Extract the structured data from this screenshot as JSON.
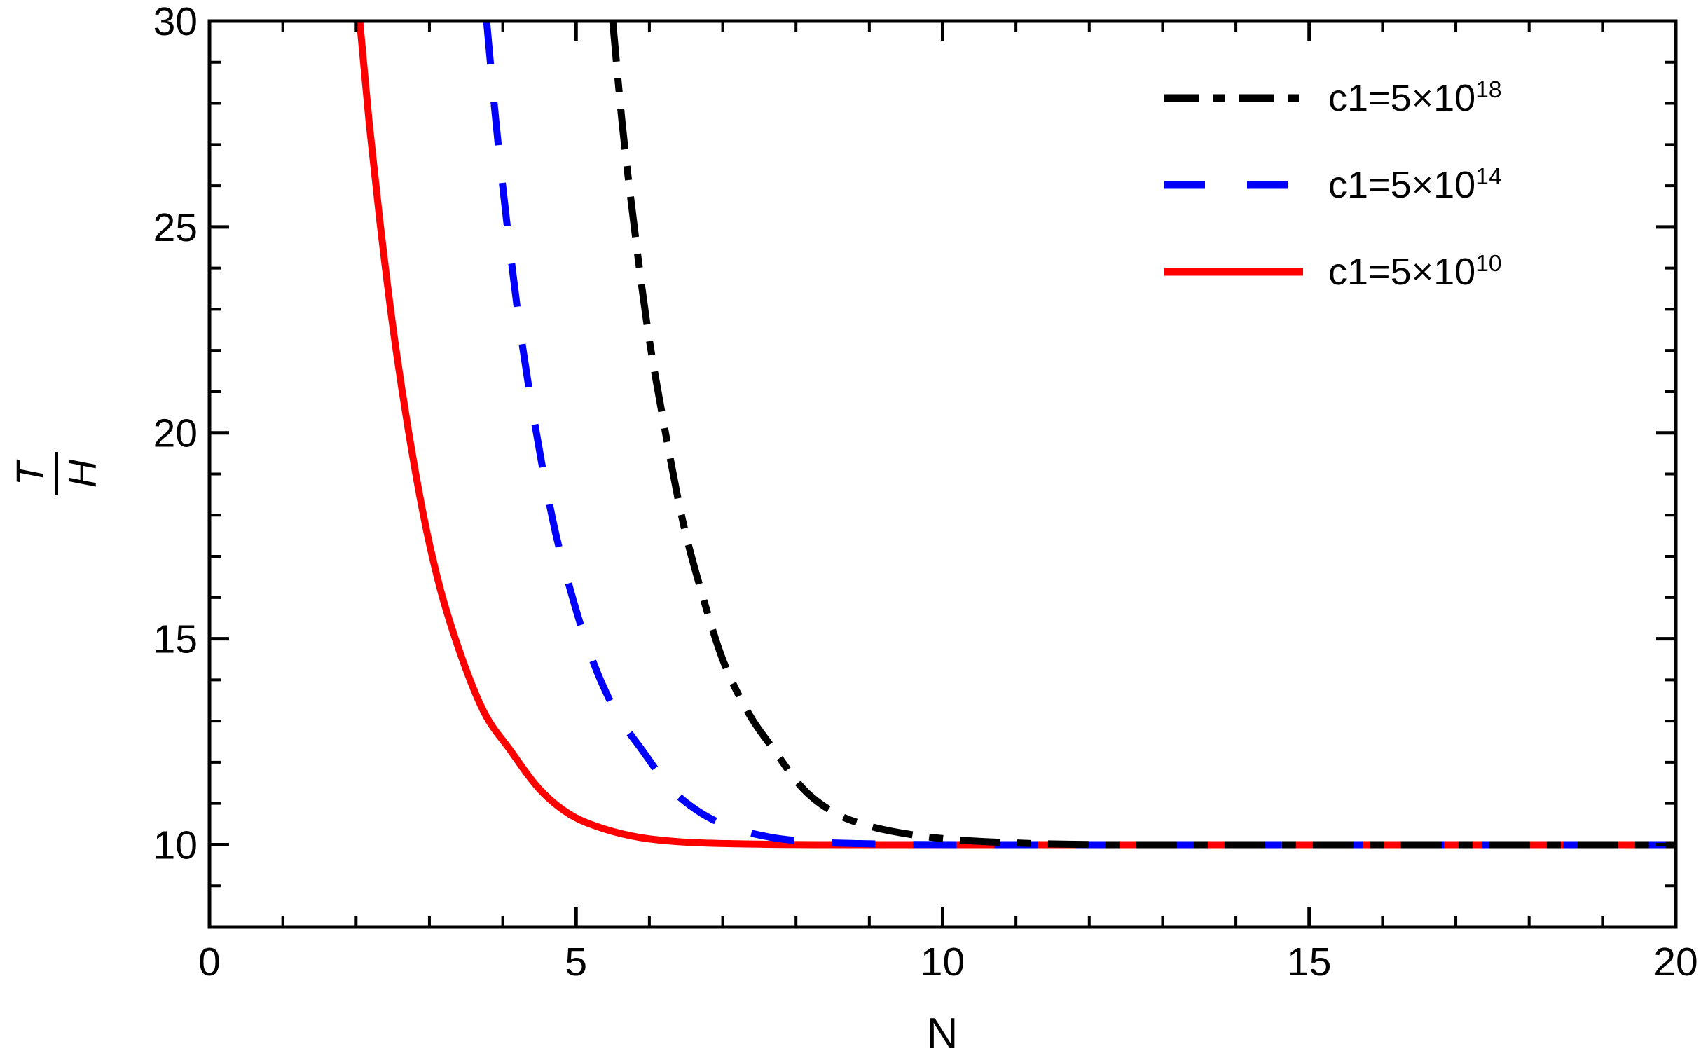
{
  "figure": {
    "background": "#ffffff",
    "frame_color": "#000000"
  },
  "chart_data": {
    "type": "line",
    "title": "",
    "xlabel": "N",
    "ylabel_numerator": "T",
    "ylabel_denominator": "H",
    "xlim": [
      0,
      20
    ],
    "ylim": [
      8,
      30
    ],
    "grid": false,
    "legend_position": "top-right-inside",
    "x_major_ticks": [
      0,
      5,
      10,
      15,
      20
    ],
    "x_major_labels": [
      "0",
      "5",
      "10",
      "15",
      "20"
    ],
    "x_minor_ticks": [
      1,
      2,
      3,
      4,
      6,
      7,
      8,
      9,
      11,
      12,
      13,
      14,
      16,
      17,
      18,
      19
    ],
    "y_major_ticks": [
      10,
      15,
      20,
      25,
      30
    ],
    "y_major_labels": [
      "10",
      "15",
      "20",
      "25",
      "30"
    ],
    "y_minor_ticks": [
      9,
      11,
      12,
      13,
      14,
      16,
      17,
      18,
      19,
      21,
      22,
      23,
      24,
      26,
      27,
      28,
      29
    ],
    "asymptote_value": 10,
    "series": [
      {
        "label_base": "c1=5×10",
        "label_exp": "18",
        "color": "#000000",
        "style": "dash-dot",
        "points": [
          [
            5.5,
            30
          ],
          [
            5.63,
            27.5
          ],
          [
            5.78,
            25.2
          ],
          [
            5.97,
            22.6
          ],
          [
            6.2,
            20.2
          ],
          [
            6.45,
            17.9
          ],
          [
            6.7,
            16.2
          ],
          [
            7.0,
            14.5
          ],
          [
            7.35,
            13.2
          ],
          [
            7.7,
            12.3
          ],
          [
            8.1,
            11.35
          ],
          [
            8.55,
            10.75
          ],
          [
            9.0,
            10.45
          ],
          [
            9.55,
            10.25
          ],
          [
            10.1,
            10.13
          ],
          [
            11.0,
            10.04
          ],
          [
            12.5,
            10.0
          ],
          [
            15.0,
            10.0
          ],
          [
            20.0,
            10.0
          ]
        ]
      },
      {
        "label_base": "c1=5×10",
        "label_exp": "14",
        "color": "#0000ff",
        "style": "dashed",
        "points": [
          [
            3.78,
            30
          ],
          [
            3.91,
            27.5
          ],
          [
            4.05,
            25.2
          ],
          [
            4.23,
            22.6
          ],
          [
            4.44,
            20.2
          ],
          [
            4.68,
            17.9
          ],
          [
            4.92,
            16.2
          ],
          [
            5.22,
            14.5
          ],
          [
            5.55,
            13.2
          ],
          [
            5.9,
            12.3
          ],
          [
            6.3,
            11.35
          ],
          [
            6.72,
            10.75
          ],
          [
            7.15,
            10.4
          ],
          [
            7.65,
            10.18
          ],
          [
            8.2,
            10.07
          ],
          [
            9.0,
            10.02
          ],
          [
            10.5,
            10.0
          ],
          [
            13.0,
            10.0
          ],
          [
            20.0,
            10.0
          ]
        ]
      },
      {
        "label_base": "c1=5×10",
        "label_exp": "10",
        "color": "#ff0000",
        "style": "solid",
        "points": [
          [
            2.05,
            30
          ],
          [
            2.18,
            27.5
          ],
          [
            2.32,
            25.2
          ],
          [
            2.5,
            22.6
          ],
          [
            2.7,
            20.2
          ],
          [
            2.93,
            17.9
          ],
          [
            3.15,
            16.2
          ],
          [
            3.45,
            14.5
          ],
          [
            3.75,
            13.2
          ],
          [
            4.1,
            12.3
          ],
          [
            4.5,
            11.35
          ],
          [
            4.9,
            10.75
          ],
          [
            5.35,
            10.4
          ],
          [
            5.85,
            10.18
          ],
          [
            6.4,
            10.07
          ],
          [
            7.2,
            10.02
          ],
          [
            8.5,
            10.0
          ],
          [
            12.0,
            10.0
          ],
          [
            20.0,
            10.0
          ]
        ]
      }
    ]
  }
}
